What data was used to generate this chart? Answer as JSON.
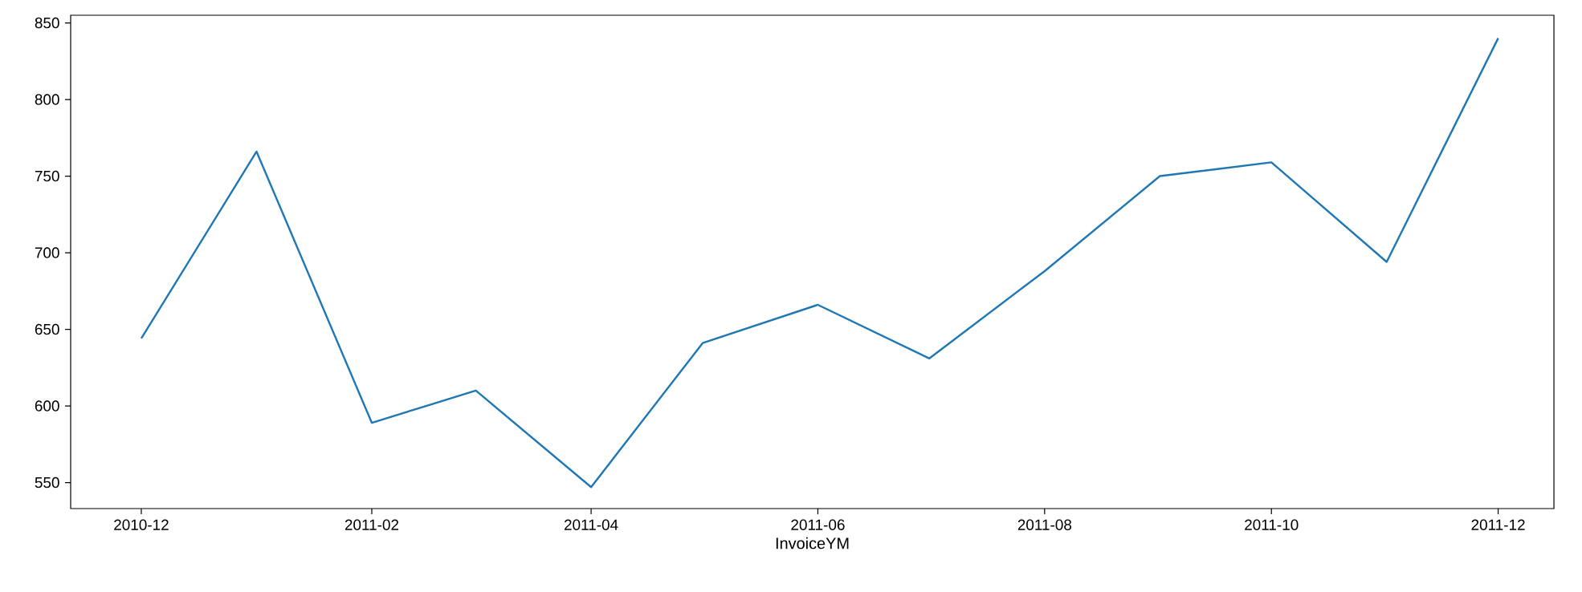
{
  "chart_data": {
    "type": "line",
    "xlabel": "InvoiceYM",
    "x": [
      "2010-12",
      "2011-01",
      "2011-02",
      "2011-03",
      "2011-04",
      "2011-05",
      "2011-06",
      "2011-07",
      "2011-08",
      "2011-09",
      "2011-10",
      "2011-11",
      "2011-12"
    ],
    "series": [
      {
        "color": "#1f77b4",
        "values": [
          644,
          766,
          589,
          610,
          547,
          641,
          666,
          631,
          688,
          750,
          759,
          694,
          840
        ]
      }
    ],
    "xlim": [
      "2010-11-12",
      "2011-12-16"
    ],
    "xticks": [
      "2010-12",
      "2011-02",
      "2011-04",
      "2011-06",
      "2011-08",
      "2011-10",
      "2011-12"
    ],
    "ylim": [
      533,
      855
    ],
    "yticks": [
      550,
      600,
      650,
      700,
      750,
      800,
      850
    ],
    "grid": false
  }
}
